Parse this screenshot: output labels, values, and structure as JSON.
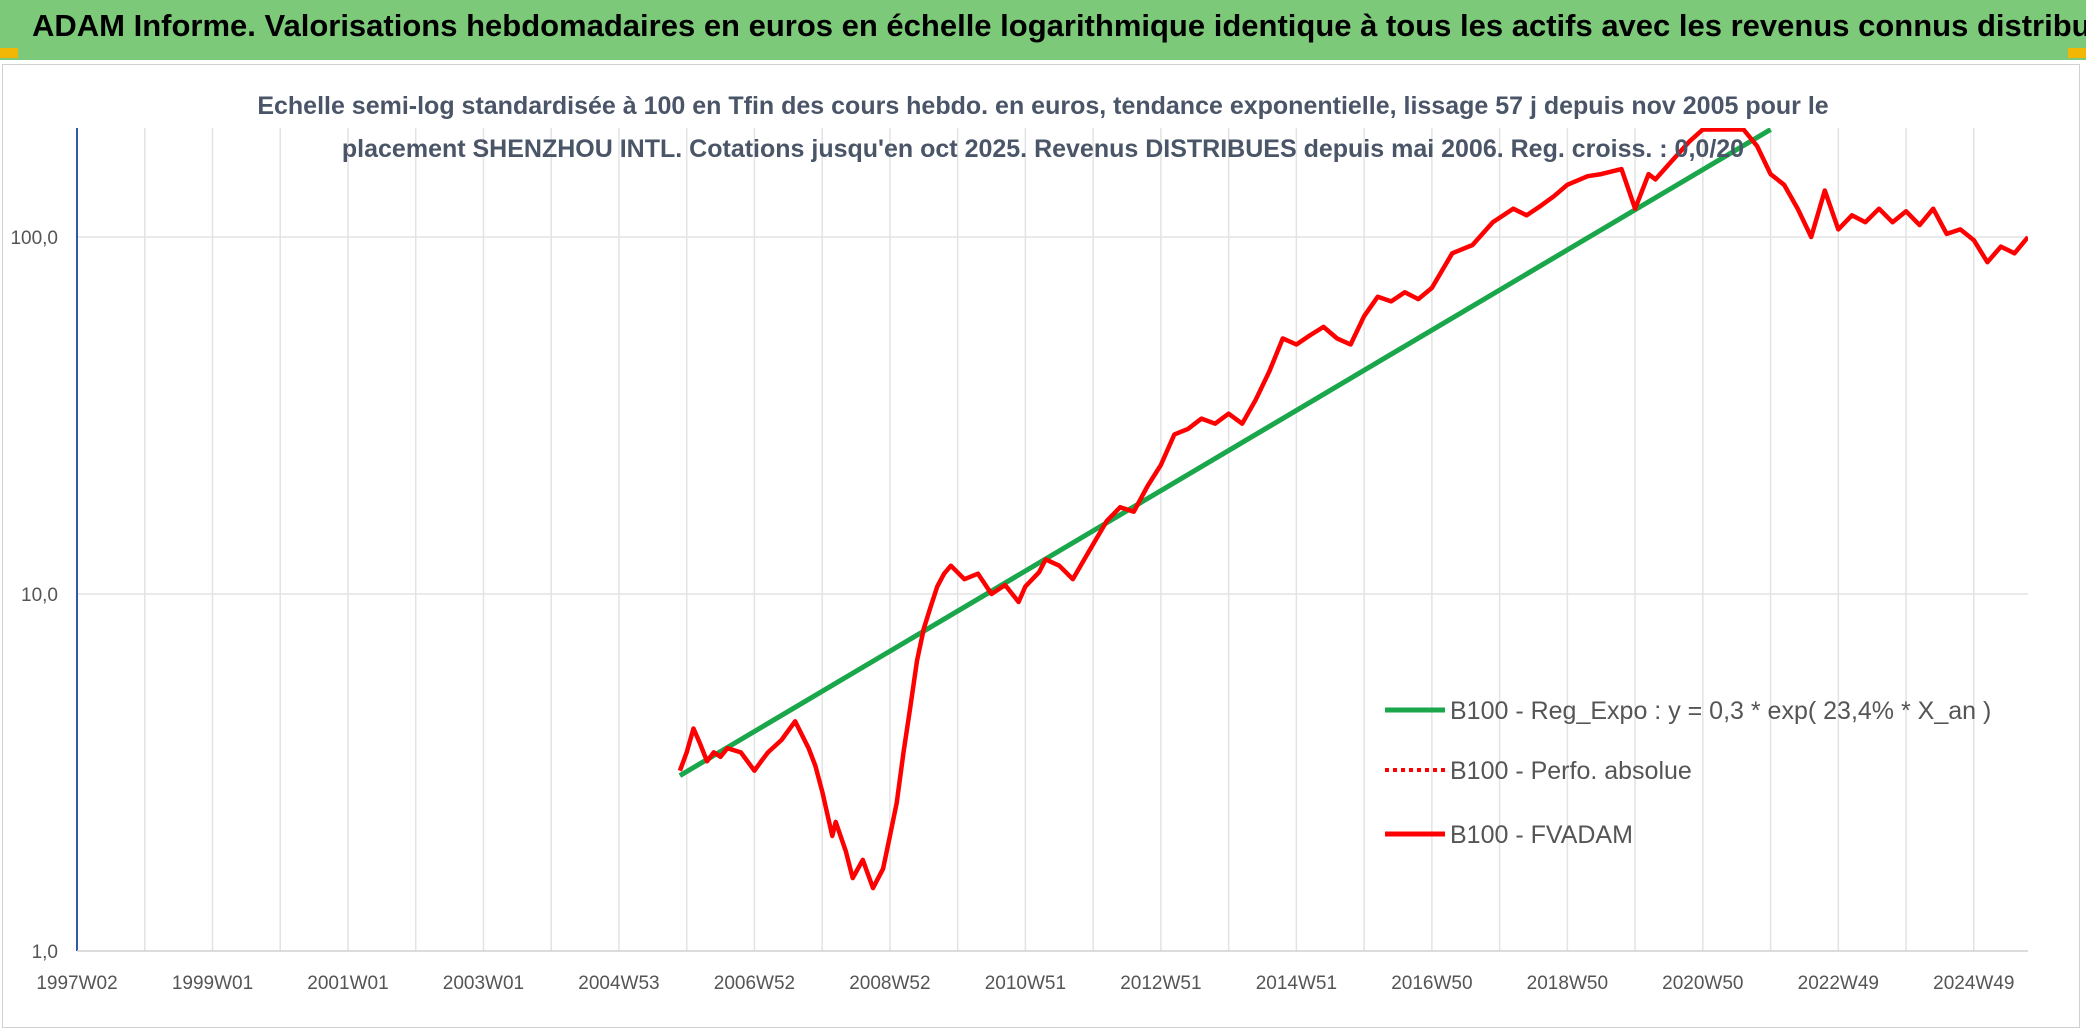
{
  "header": {
    "title": "ADAM Informe. Valorisations hebdomadaires en euros en échelle logarithmique identique à tous les actifs avec les revenus connus distribués"
  },
  "colors": {
    "banner": "#7dc97a",
    "regression": "#1aa64a",
    "fvadam": "#ff0000",
    "perfo": "#ff0000",
    "grid": "#e3e3e3"
  },
  "chart_data": {
    "type": "line",
    "subtitle_line1": "Echelle semi-log standardisée à 100 en Tfin des cours hebdo. en euros, tendance exponentielle, lissage 57 j depuis nov 2005 pour le",
    "subtitle_line2": "placement SHENZHOU INTL. Cotations jusqu'en oct 2025. Revenus DISTRIBUES depuis mai 2006. Reg. croiss. : 0,0/20",
    "y_scale": "log",
    "ylim": [
      1,
      200
    ],
    "xlim": [
      1997.0,
      2025.8
    ],
    "y_ticks": [
      {
        "value": 1,
        "label": "1,0"
      },
      {
        "value": 10,
        "label": "10,0"
      },
      {
        "value": 100,
        "label": "100,0"
      }
    ],
    "x_ticks": [
      {
        "value": 1997.0,
        "label": "1997W02"
      },
      {
        "value": 1999.0,
        "label": "1999W01"
      },
      {
        "value": 2001.0,
        "label": "2001W01"
      },
      {
        "value": 2003.0,
        "label": "2003W01"
      },
      {
        "value": 2005.0,
        "label": "2004W53"
      },
      {
        "value": 2007.0,
        "label": "2006W52"
      },
      {
        "value": 2009.0,
        "label": "2008W52"
      },
      {
        "value": 2011.0,
        "label": "2010W51"
      },
      {
        "value": 2013.0,
        "label": "2012W51"
      },
      {
        "value": 2015.0,
        "label": "2014W51"
      },
      {
        "value": 2017.0,
        "label": "2016W50"
      },
      {
        "value": 2019.0,
        "label": "2018W50"
      },
      {
        "value": 2021.0,
        "label": "2020W50"
      },
      {
        "value": 2023.0,
        "label": "2022W49"
      },
      {
        "value": 2025.0,
        "label": "2024W49"
      }
    ],
    "grid": true,
    "legend_position": "right",
    "series": [
      {
        "name": "B100 - Reg_Expo : y = 0,3 * exp( 23,4% *  X_an )",
        "style": "solid-green",
        "x": [
          2005.9,
          2022.0
        ],
        "y": [
          3.1,
          200
        ]
      },
      {
        "name": "B100 - Perfo. absolue",
        "style": "dotted-red",
        "x": [],
        "y": []
      },
      {
        "name": "B100 - FVADAM",
        "style": "solid-red",
        "x": [
          2005.9,
          2006.0,
          2006.1,
          2006.2,
          2006.3,
          2006.4,
          2006.5,
          2006.6,
          2006.8,
          2007.0,
          2007.1,
          2007.2,
          2007.4,
          2007.6,
          2007.8,
          2007.9,
          2008.0,
          2008.15,
          2008.2,
          2008.35,
          2008.45,
          2008.6,
          2008.75,
          2008.9,
          2009.0,
          2009.1,
          2009.2,
          2009.3,
          2009.4,
          2009.5,
          2009.6,
          2009.7,
          2009.8,
          2009.9,
          2010.1,
          2010.3,
          2010.5,
          2010.7,
          2010.9,
          2011.0,
          2011.2,
          2011.3,
          2011.5,
          2011.7,
          2011.9,
          2012.2,
          2012.4,
          2012.6,
          2012.8,
          2013.0,
          2013.2,
          2013.4,
          2013.6,
          2013.8,
          2014.0,
          2014.2,
          2014.4,
          2014.6,
          2014.8,
          2015.0,
          2015.2,
          2015.4,
          2015.6,
          2015.8,
          2016.0,
          2016.2,
          2016.4,
          2016.6,
          2016.8,
          2017.0,
          2017.3,
          2017.6,
          2017.9,
          2018.2,
          2018.4,
          2018.6,
          2018.8,
          2019.0,
          2019.3,
          2019.5,
          2019.8,
          2020.0,
          2020.2,
          2020.3,
          2020.5,
          2020.8,
          2021.0,
          2021.2,
          2021.4,
          2021.6,
          2021.8,
          2022.0,
          2022.2,
          2022.4,
          2022.6,
          2022.8,
          2023.0,
          2023.2,
          2023.4,
          2023.6,
          2023.8,
          2024.0,
          2024.2,
          2024.4,
          2024.6,
          2024.8,
          2025.0,
          2025.2,
          2025.4,
          2025.6,
          2025.8
        ],
        "y": [
          3.2,
          3.6,
          4.2,
          3.8,
          3.4,
          3.6,
          3.5,
          3.7,
          3.6,
          3.2,
          3.4,
          3.6,
          3.9,
          4.4,
          3.7,
          3.3,
          2.8,
          2.1,
          2.3,
          1.9,
          1.6,
          1.8,
          1.5,
          1.7,
          2.1,
          2.6,
          3.6,
          4.8,
          6.5,
          8.0,
          9.2,
          10.5,
          11.4,
          12.0,
          11.0,
          11.4,
          10.0,
          10.6,
          9.5,
          10.5,
          11.5,
          12.5,
          12.0,
          11.0,
          12.8,
          16.0,
          17.5,
          17.0,
          20.0,
          23.0,
          28.0,
          29.0,
          31.0,
          30.0,
          32.0,
          30.0,
          35.0,
          42.0,
          52.0,
          50.0,
          53.0,
          56.0,
          52.0,
          50.0,
          60.0,
          68.0,
          66.0,
          70.0,
          67.0,
          72.0,
          90.0,
          95.0,
          110.0,
          120.0,
          115.0,
          122.0,
          130.0,
          140.0,
          148.0,
          150.0,
          155.0,
          120.0,
          150.0,
          145.0,
          160.0,
          185.0,
          200.0,
          200.0,
          200.0,
          200.0,
          180.0,
          150.0,
          140.0,
          120.0,
          100.0,
          135.0,
          105.0,
          115.0,
          110.0,
          120.0,
          110.0,
          118.0,
          108.0,
          120.0,
          102.0,
          105.0,
          98.0,
          85.0,
          94.0,
          90.0,
          100.0
        ]
      }
    ]
  }
}
